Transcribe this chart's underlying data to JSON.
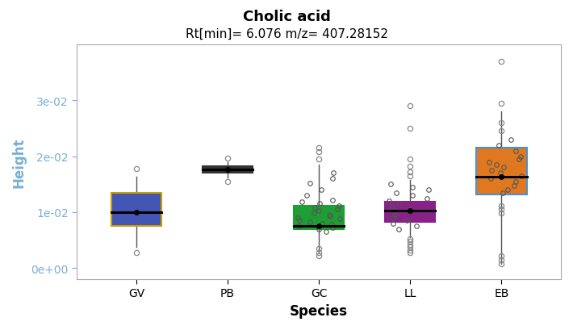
{
  "title": "Cholic acid",
  "subtitle": "Rt[min]= 6.076 m/z= 407.28152",
  "xlabel": "Species",
  "ylabel": "Height",
  "categories": [
    "GV",
    "PB",
    "GC",
    "LL",
    "EB"
  ],
  "colors": [
    "#4355b5",
    "#333333",
    "#1e9e34",
    "#882288",
    "#e07820"
  ],
  "edge_colors": [
    "#c8a000",
    "#333333",
    "#1e9e34",
    "#882288",
    "#4a90d9"
  ],
  "box_data": {
    "GV": {
      "whislo": 0.0038,
      "q1": 0.0075,
      "med": 0.01,
      "q3": 0.0135,
      "whishi": 0.0163,
      "mean": 0.01,
      "fliers_above": [
        0.0178
      ],
      "fliers_below": [
        0.0028
      ],
      "jitter": []
    },
    "PB": {
      "whislo": 0.0162,
      "q1": 0.017,
      "med": 0.0177,
      "q3": 0.0182,
      "whishi": 0.019,
      "mean": 0.0177,
      "fliers_above": [
        0.0197
      ],
      "fliers_below": [
        0.0155
      ],
      "jitter": []
    },
    "GC": {
      "whislo": 0.0028,
      "q1": 0.007,
      "med": 0.0076,
      "q3": 0.0112,
      "whishi": 0.0185,
      "mean": 0.0076,
      "fliers_above": [
        0.0215,
        0.0208,
        0.0195
      ],
      "fliers_below": [
        0.0022,
        0.0028,
        0.0035
      ],
      "jitter": [
        0.0065,
        0.007,
        0.0072,
        0.0075,
        0.0078,
        0.008,
        0.0082,
        0.0085,
        0.0088,
        0.009,
        0.0093,
        0.0095,
        0.0098,
        0.0102,
        0.0105,
        0.0108,
        0.0112,
        0.0115,
        0.0118,
        0.0122,
        0.013,
        0.014,
        0.0152,
        0.016,
        0.017
      ]
    },
    "LL": {
      "whislo": 0.0055,
      "q1": 0.0082,
      "med": 0.0102,
      "q3": 0.0118,
      "whishi": 0.0158,
      "mean": 0.0102,
      "fliers_above": [
        0.0165,
        0.0172,
        0.0182,
        0.0195,
        0.025,
        0.029
      ],
      "fliers_below": [
        0.0028,
        0.0032,
        0.0038,
        0.0042,
        0.0048,
        0.0052
      ],
      "jitter": [
        0.007,
        0.0075,
        0.008,
        0.0085,
        0.009,
        0.0095,
        0.01,
        0.0105,
        0.011,
        0.0115,
        0.012,
        0.0125,
        0.013,
        0.0135,
        0.014,
        0.0145,
        0.015
      ]
    },
    "EB": {
      "whislo": 0.0008,
      "q1": 0.0132,
      "med": 0.0163,
      "q3": 0.0215,
      "whishi": 0.028,
      "mean": 0.0163,
      "fliers_above": [
        0.037,
        0.0295,
        0.026,
        0.0245
      ],
      "fliers_below": [
        0.0008,
        0.0015,
        0.0022,
        0.0098,
        0.0105,
        0.0112
      ],
      "jitter": [
        0.0135,
        0.014,
        0.0148,
        0.0155,
        0.016,
        0.0165,
        0.017,
        0.0175,
        0.018,
        0.0185,
        0.019,
        0.0195,
        0.02,
        0.021,
        0.022,
        0.023
      ]
    }
  },
  "ylim": [
    -0.002,
    0.04
  ],
  "yticks": [
    0.0,
    0.01,
    0.02,
    0.03
  ],
  "ytick_labels": [
    "0e+00",
    "1e-02",
    "2e-02",
    "3e-02"
  ],
  "ylabel_color": "#7ab0d4",
  "ytick_color": "#7ab0d4",
  "background_color": "#ffffff",
  "plot_bg_color": "#ffffff",
  "spine_color": "#aaaaaa",
  "title_fontsize": 13,
  "subtitle_fontsize": 11,
  "axis_label_fontsize": 12,
  "tick_fontsize": 10,
  "box_width": 0.55
}
